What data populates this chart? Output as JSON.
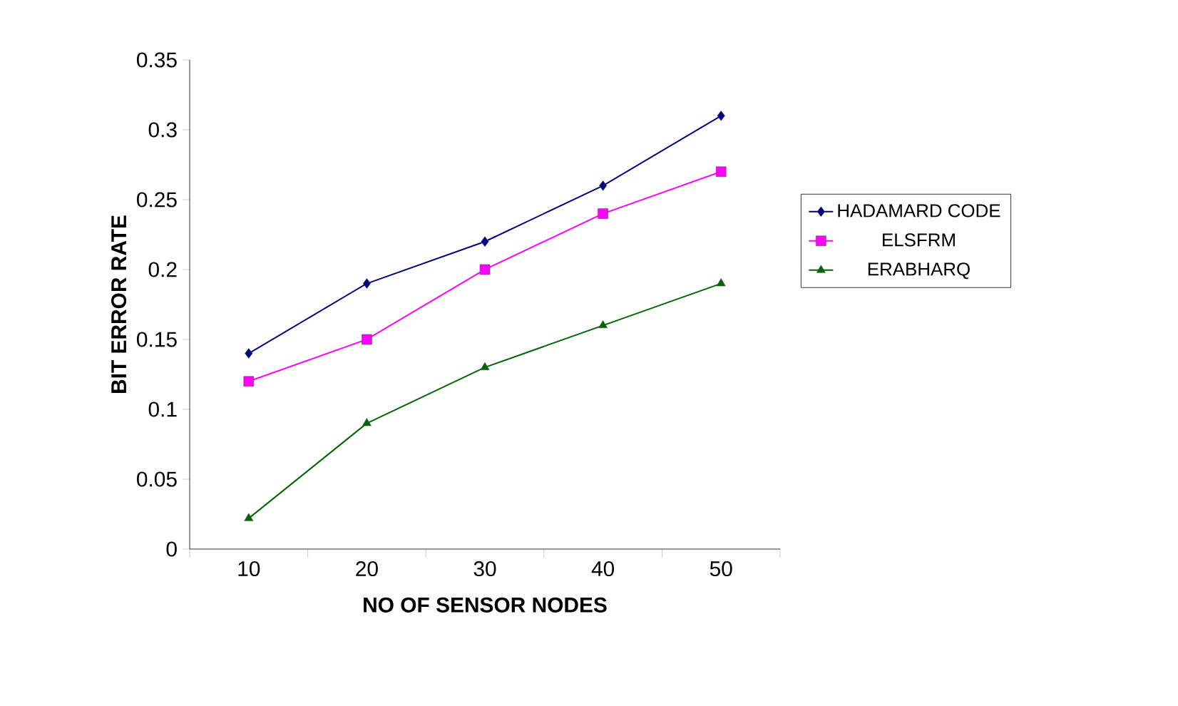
{
  "chart_data": {
    "type": "line",
    "xlabel": "NO OF SENSOR NODES",
    "ylabel": "BIT ERROR RATE",
    "categories": [
      "10",
      "20",
      "30",
      "40",
      "50"
    ],
    "series": [
      {
        "name": "HADAMARD CODE",
        "color": "#000080",
        "marker": "diamond",
        "values": [
          0.14,
          0.19,
          0.22,
          0.26,
          0.31
        ]
      },
      {
        "name": "ELSFRM",
        "color": "#ff00ff",
        "marker": "square",
        "values": [
          0.12,
          0.15,
          0.2,
          0.24,
          0.27
        ]
      },
      {
        "name": "ERABHARQ",
        "color": "#006600",
        "marker": "triangle",
        "values": [
          0.022,
          0.09,
          0.13,
          0.16,
          0.19
        ]
      }
    ],
    "ylim": [
      0,
      0.35
    ],
    "yticks": [
      0,
      0.05,
      0.1,
      0.15,
      0.2,
      0.25,
      0.3,
      0.35
    ],
    "grid": false,
    "legend": "right",
    "line_style": "solid"
  }
}
